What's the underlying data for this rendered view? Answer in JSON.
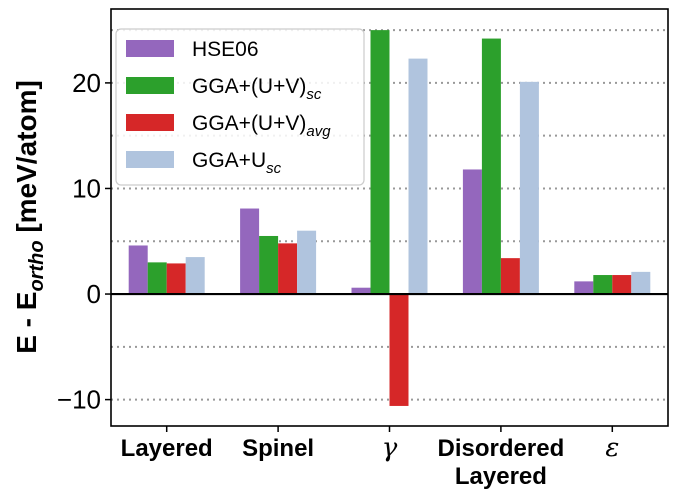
{
  "chart_data": {
    "type": "bar",
    "title": "",
    "xlabel": "",
    "ylabel": "E - E",
    "ylabel_sub": "ortho",
    "ylabel_unit": " [meV/atom]",
    "ylim": [
      -12.5,
      27
    ],
    "yticks": [
      -10,
      0,
      10,
      20
    ],
    "ytick_labels": [
      "−10",
      "0",
      "10",
      "20"
    ],
    "grid_lines": [
      -10,
      -5,
      5,
      10,
      15,
      20,
      25
    ],
    "categories": [
      {
        "lines": [
          "Layered"
        ],
        "style": "bold"
      },
      {
        "lines": [
          "Spinel"
        ],
        "style": "bold"
      },
      {
        "lines": [
          "γ"
        ],
        "style": "greek"
      },
      {
        "lines": [
          "Disordered",
          "Layered"
        ],
        "style": "bold"
      },
      {
        "lines": [
          "ε"
        ],
        "style": "greek"
      }
    ],
    "series": [
      {
        "name": "HSE06",
        "sub": "",
        "color": "#9467bd",
        "values": [
          4.6,
          8.1,
          0.6,
          11.8,
          1.2
        ]
      },
      {
        "name": "GGA+(U+V)",
        "sub": "sc",
        "color": "#2ca02c",
        "values": [
          3.0,
          5.5,
          25.0,
          24.2,
          1.8
        ]
      },
      {
        "name": "GGA+(U+V)",
        "sub": "avg",
        "color": "#d62728",
        "values": [
          2.9,
          4.8,
          -10.6,
          3.4,
          1.8
        ]
      },
      {
        "name": "GGA+U",
        "sub": "sc",
        "color": "#b0c4de",
        "values": [
          3.5,
          6.0,
          22.3,
          20.1,
          2.1
        ]
      }
    ],
    "legend_position": "upper-left"
  }
}
